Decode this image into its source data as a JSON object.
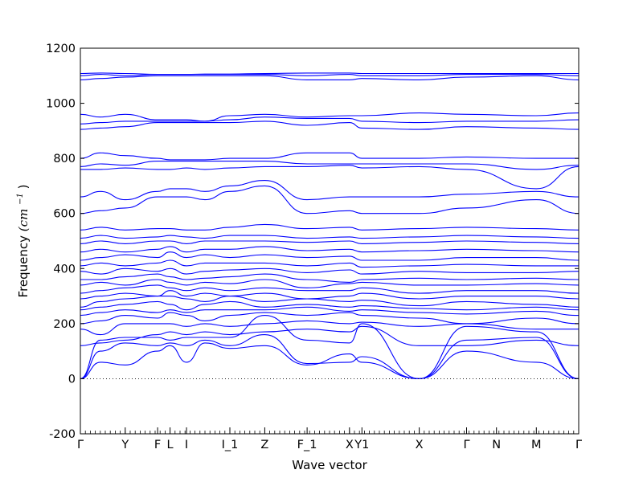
{
  "chart_data": {
    "type": "line",
    "xlabel": "Wave vector",
    "ylabel": "Frequency",
    "ylabel_unit": "(cm",
    "ylabel_exp": "−1",
    "ylabel_close": ")",
    "ylim": [
      -200,
      1200
    ],
    "yticks": [
      -200,
      0,
      200,
      400,
      600,
      800,
      1000,
      1200
    ],
    "x_range": [
      0,
      1
    ],
    "high_symmetry_points": [
      {
        "label": "Γ",
        "x": 0.0
      },
      {
        "label": "Y",
        "x": 0.09
      },
      {
        "label": "F",
        "x": 0.155
      },
      {
        "label": "L",
        "x": 0.18
      },
      {
        "label": "I",
        "x": 0.213
      },
      {
        "label": "I_1",
        "x": 0.3
      },
      {
        "label": "Z",
        "x": 0.37
      },
      {
        "label": "F_1",
        "x": 0.455
      },
      {
        "label": "X",
        "x": 0.54
      },
      {
        "label": "Y1",
        "x": 0.565
      },
      {
        "label": "X",
        "x": 0.68
      },
      {
        "label": "Γ",
        "x": 0.775
      },
      {
        "label": "N",
        "x": 0.835
      },
      {
        "label": "M",
        "x": 0.915
      },
      {
        "label": "Γ",
        "x": 1.0
      }
    ],
    "zero_line": true,
    "line_color": "#0000ff",
    "series": [
      {
        "values": [
          0,
          60,
          50,
          100,
          120,
          60,
          130,
          110,
          120,
          50,
          90,
          60,
          0,
          100,
          60,
          0
        ]
      },
      {
        "values": [
          0,
          100,
          130,
          120,
          130,
          120,
          140,
          120,
          160,
          55,
          60,
          80,
          0,
          140,
          150,
          0
        ]
      },
      {
        "values": [
          0,
          140,
          150,
          150,
          140,
          150,
          150,
          150,
          230,
          140,
          130,
          200,
          0,
          190,
          170,
          0
        ]
      },
      {
        "values": [
          120,
          130,
          140,
          160,
          170,
          160,
          170,
          160,
          170,
          180,
          170,
          190,
          120,
          120,
          140,
          120
        ]
      },
      {
        "values": [
          180,
          160,
          200,
          200,
          200,
          190,
          200,
          190,
          200,
          210,
          200,
          205,
          190,
          200,
          180,
          180
        ]
      },
      {
        "values": [
          200,
          210,
          230,
          220,
          240,
          230,
          210,
          230,
          240,
          230,
          240,
          230,
          220,
          200,
          220,
          200
        ]
      },
      {
        "values": [
          230,
          240,
          250,
          240,
          250,
          240,
          250,
          250,
          250,
          260,
          245,
          250,
          240,
          235,
          245,
          230
        ]
      },
      {
        "values": [
          250,
          260,
          270,
          280,
          270,
          250,
          270,
          280,
          260,
          270,
          260,
          265,
          255,
          250,
          260,
          250
        ]
      },
      {
        "values": [
          260,
          280,
          290,
          300,
          300,
          290,
          280,
          300,
          280,
          290,
          280,
          285,
          265,
          280,
          270,
          260
        ]
      },
      {
        "values": [
          290,
          300,
          310,
          300,
          320,
          300,
          310,
          300,
          310,
          290,
          300,
          310,
          290,
          300,
          300,
          290
        ]
      },
      {
        "values": [
          310,
          320,
          330,
          340,
          330,
          320,
          330,
          320,
          330,
          320,
          320,
          330,
          310,
          320,
          320,
          310
        ]
      },
      {
        "values": [
          340,
          350,
          340,
          360,
          350,
          340,
          350,
          345,
          360,
          330,
          345,
          350,
          340,
          340,
          345,
          340
        ]
      },
      {
        "values": [
          360,
          360,
          370,
          380,
          370,
          360,
          365,
          370,
          380,
          360,
          350,
          360,
          365,
          360,
          365,
          360
        ]
      },
      {
        "values": [
          390,
          380,
          400,
          390,
          400,
          380,
          390,
          395,
          400,
          385,
          395,
          380,
          390,
          385,
          385,
          390
        ]
      },
      {
        "values": [
          410,
          420,
          410,
          420,
          430,
          410,
          420,
          420,
          420,
          410,
          420,
          405,
          410,
          415,
          410,
          410
        ]
      },
      {
        "values": [
          430,
          440,
          450,
          440,
          460,
          440,
          450,
          440,
          450,
          440,
          445,
          430,
          430,
          440,
          440,
          430
        ]
      },
      {
        "values": [
          460,
          470,
          460,
          470,
          480,
          460,
          470,
          470,
          480,
          465,
          470,
          460,
          465,
          470,
          465,
          460
        ]
      },
      {
        "values": [
          490,
          500,
          490,
          500,
          500,
          490,
          500,
          500,
          500,
          495,
          500,
          490,
          495,
          500,
          495,
          490
        ]
      },
      {
        "values": [
          510,
          520,
          510,
          515,
          520,
          515,
          510,
          520,
          520,
          510,
          515,
          510,
          515,
          520,
          515,
          510
        ]
      },
      {
        "values": [
          540,
          550,
          540,
          545,
          545,
          540,
          540,
          550,
          560,
          545,
          550,
          540,
          545,
          550,
          545,
          540
        ]
      },
      {
        "values": [
          600,
          610,
          620,
          660,
          660,
          660,
          650,
          680,
          700,
          600,
          610,
          600,
          600,
          620,
          650,
          600
        ]
      },
      {
        "values": [
          660,
          680,
          650,
          680,
          690,
          690,
          680,
          700,
          720,
          650,
          660,
          660,
          660,
          670,
          680,
          660
        ]
      },
      {
        "values": [
          760,
          760,
          765,
          760,
          760,
          765,
          760,
          765,
          770,
          770,
          775,
          765,
          770,
          760,
          690,
          770
        ]
      },
      {
        "values": [
          770,
          780,
          775,
          790,
          790,
          790,
          790,
          790,
          790,
          780,
          780,
          780,
          780,
          780,
          760,
          775
        ]
      },
      {
        "values": [
          800,
          820,
          810,
          800,
          795,
          795,
          795,
          800,
          800,
          820,
          820,
          800,
          800,
          805,
          800,
          800
        ]
      },
      {
        "values": [
          905,
          910,
          915,
          930,
          930,
          930,
          930,
          930,
          935,
          920,
          930,
          910,
          905,
          915,
          910,
          905
        ]
      },
      {
        "values": [
          925,
          930,
          935,
          935,
          935,
          935,
          935,
          940,
          950,
          945,
          945,
          935,
          930,
          935,
          935,
          940
        ]
      },
      {
        "values": [
          960,
          950,
          960,
          940,
          940,
          940,
          935,
          955,
          960,
          950,
          955,
          955,
          965,
          960,
          955,
          965
        ]
      },
      {
        "values": [
          1085,
          1090,
          1095,
          1100,
          1100,
          1100,
          1100,
          1100,
          1100,
          1085,
          1085,
          1090,
          1085,
          1095,
          1100,
          1085
        ]
      },
      {
        "values": [
          1100,
          1105,
          1100,
          1105,
          1105,
          1105,
          1105,
          1105,
          1105,
          1100,
          1105,
          1100,
          1100,
          1105,
          1105,
          1100
        ]
      },
      {
        "values": [
          1108,
          1110,
          1108,
          1105,
          1105,
          1105,
          1106,
          1106,
          1108,
          1110,
          1110,
          1108,
          1108,
          1108,
          1108,
          1108
        ]
      }
    ],
    "series_x": [
      0,
      0.04,
      0.09,
      0.155,
      0.18,
      0.213,
      0.25,
      0.3,
      0.37,
      0.455,
      0.54,
      0.565,
      0.68,
      0.775,
      0.915,
      1.0
    ]
  }
}
